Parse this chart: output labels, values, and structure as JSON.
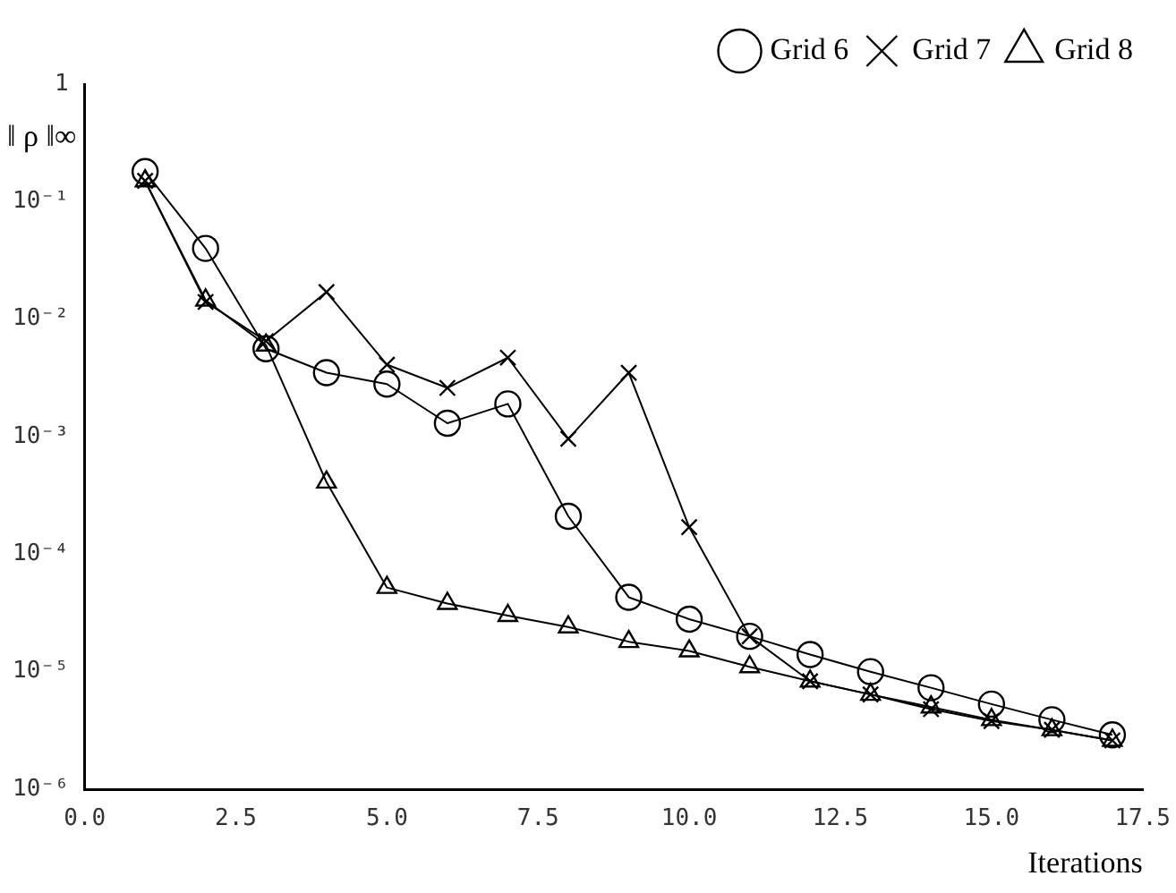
{
  "chart_data": {
    "type": "line",
    "xlabel": "Iterations",
    "ylabel": "‖ ρ ‖∞",
    "log": "y",
    "legend": "top right",
    "x": [
      1,
      2,
      3,
      4,
      5,
      6,
      7,
      8,
      9,
      10,
      11,
      12,
      13,
      14,
      15,
      16,
      17
    ],
    "xlim": [
      0,
      17.5
    ],
    "xticks": [
      {
        "value": 0,
        "label": "0.0"
      },
      2.5,
      {
        "value": 5,
        "label": "5.0"
      },
      7.5,
      {
        "value": 10,
        "label": "10.0"
      },
      12.5,
      {
        "value": 15,
        "label": "15.0"
      },
      17.5
    ],
    "ylim": [
      1e-06,
      1
    ],
    "yticks": [
      {
        "value": 1e-06,
        "label": "10⁻⁶"
      },
      {
        "value": 1e-05,
        "label": "10⁻⁵"
      },
      {
        "value": 0.0001,
        "label": "10⁻⁴"
      },
      {
        "value": 0.001,
        "label": "10⁻³"
      },
      {
        "value": 0.01,
        "label": "10⁻²"
      },
      {
        "value": 0.1,
        "label": "10⁻¹"
      },
      1
    ],
    "series": [
      {
        "name": "Grid 6",
        "color": "#000000",
        "marker": "circle",
        "values": [
          0.18,
          0.04,
          0.0056,
          0.0035,
          0.0028,
          0.0013,
          0.0019,
          0.00021,
          4.3e-05,
          2.8e-05,
          2e-05,
          1.4e-05,
          1e-05,
          7.3e-06,
          5.3e-06,
          3.9e-06,
          2.9e-06
        ]
      },
      {
        "name": "Grid 7",
        "color": "#000000",
        "marker": "cross",
        "values": [
          0.15,
          0.014,
          0.0065,
          0.017,
          0.0041,
          0.0026,
          0.0047,
          0.00096,
          0.0035,
          0.00017,
          2e-05,
          8.3e-06,
          6.4e-06,
          4.8e-06,
          3.8e-06,
          3.2e-06,
          2.6e-06
        ]
      },
      {
        "name": "Grid 8",
        "color": "#000000",
        "marker": "triangle",
        "values": [
          0.15,
          0.0145,
          0.006,
          0.00041,
          5.2e-05,
          3.8e-05,
          3e-05,
          2.4e-05,
          1.8e-05,
          1.5e-05,
          1.1e-05,
          8.3e-06,
          6.4e-06,
          5e-06,
          3.9e-06,
          3.2e-06,
          2.6e-06
        ]
      }
    ]
  }
}
